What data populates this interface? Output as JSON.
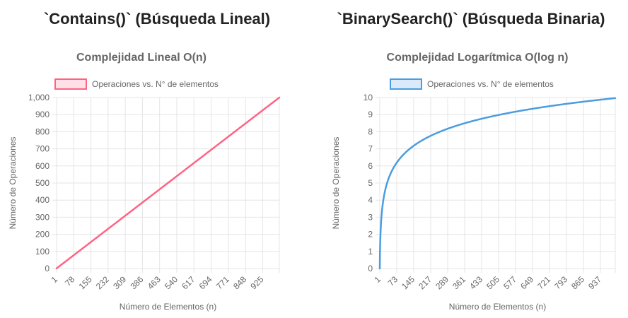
{
  "headings": {
    "left": "`Contains()` (Búsqueda Lineal)",
    "right": "`BinarySearch()` (Búsqueda Binaria)"
  },
  "chart_data": [
    {
      "type": "line",
      "title": "Complejidad Lineal O(n)",
      "legend": "Operaciones vs. N° de elementos",
      "color": "#ff6384",
      "fill_color": "#ffe0e6",
      "xlabel": "Número de Elementos (n)",
      "ylabel": "Número de Operaciones",
      "x_range": [
        1,
        1000
      ],
      "ylim": [
        0,
        1000
      ],
      "y_ticks": [
        0,
        100,
        200,
        300,
        400,
        500,
        600,
        700,
        800,
        900,
        1000
      ],
      "y_tick_labels": [
        "0",
        "100",
        "200",
        "300",
        "400",
        "500",
        "600",
        "700",
        "800",
        "900",
        "1,000"
      ],
      "x_ticks": [
        1,
        78,
        155,
        232,
        309,
        386,
        463,
        540,
        617,
        694,
        771,
        848,
        925
      ],
      "function": "linear",
      "points": [
        [
          1,
          1
        ],
        [
          1000,
          1000
        ]
      ],
      "grid": true,
      "legend_position": "top"
    },
    {
      "type": "line",
      "title": "Complejidad Logarítmica O(log n)",
      "legend": "Operaciones vs. N° de elementos",
      "color": "#4a9de0",
      "fill_color": "#dbeafb",
      "xlabel": "Número de Elementos (n)",
      "ylabel": "Número de Operaciones",
      "x_range": [
        1,
        1000
      ],
      "ylim": [
        0,
        10
      ],
      "y_ticks": [
        0,
        1,
        2,
        3,
        4,
        5,
        6,
        7,
        8,
        9,
        10
      ],
      "y_tick_labels": [
        "0",
        "1",
        "2",
        "3",
        "4",
        "5",
        "6",
        "7",
        "8",
        "9",
        "10"
      ],
      "x_ticks": [
        1,
        73,
        145,
        217,
        289,
        361,
        433,
        505,
        577,
        649,
        721,
        793,
        865,
        937
      ],
      "function": "log2",
      "points": [
        [
          1,
          0
        ],
        [
          73,
          6.19
        ],
        [
          145,
          7.18
        ],
        [
          289,
          8.18
        ],
        [
          505,
          8.98
        ],
        [
          721,
          9.49
        ],
        [
          1000,
          9.97
        ]
      ],
      "grid": true,
      "legend_position": "top"
    }
  ]
}
